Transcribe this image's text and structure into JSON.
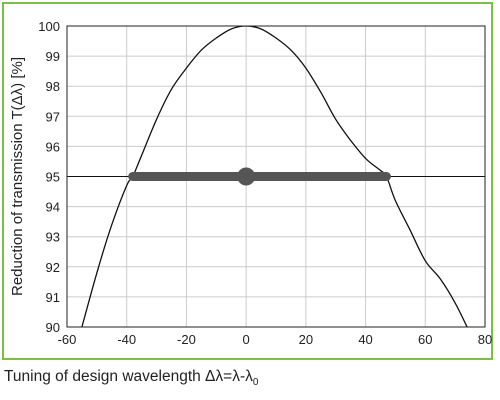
{
  "chart_data": {
    "type": "line",
    "title": "",
    "xlabel_main": "Tuning of design wavelength Δλ=λ-λ",
    "xlabel_sub": "0",
    "ylabel": "Reduction of transmission T(Δλ) [%]",
    "xlim": [
      -60,
      80
    ],
    "ylim": [
      90,
      100
    ],
    "xticks": [
      -60,
      -40,
      -20,
      0,
      20,
      40,
      60,
      80
    ],
    "yticks": [
      90,
      91,
      92,
      93,
      94,
      95,
      96,
      97,
      98,
      99,
      100
    ],
    "grid": true,
    "series": [
      {
        "type": "curve",
        "x": [
          -55,
          -50,
          -45,
          -40,
          -38,
          -35,
          -30,
          -25,
          -20,
          -15,
          -10,
          -5,
          0,
          5,
          10,
          15,
          20,
          25,
          30,
          35,
          40,
          45,
          47,
          50,
          55,
          60,
          65,
          70,
          74
        ],
        "y": [
          90.0,
          91.8,
          93.4,
          94.7,
          95.0,
          95.7,
          96.9,
          97.9,
          98.6,
          99.2,
          99.6,
          99.9,
          100.0,
          99.9,
          99.6,
          99.2,
          98.6,
          97.8,
          96.9,
          96.2,
          95.6,
          95.2,
          95.0,
          94.2,
          93.2,
          92.2,
          91.6,
          90.8,
          90.0
        ],
        "color": "#111111"
      },
      {
        "type": "reference_line",
        "y": 95,
        "color": "#111111"
      },
      {
        "type": "range_bar",
        "x_start": -38,
        "x_end": 47,
        "y": 95,
        "center_x": 0,
        "color": "#555555"
      }
    ]
  },
  "colors": {
    "frame": "#7cc043",
    "grid": "#cccccc"
  }
}
